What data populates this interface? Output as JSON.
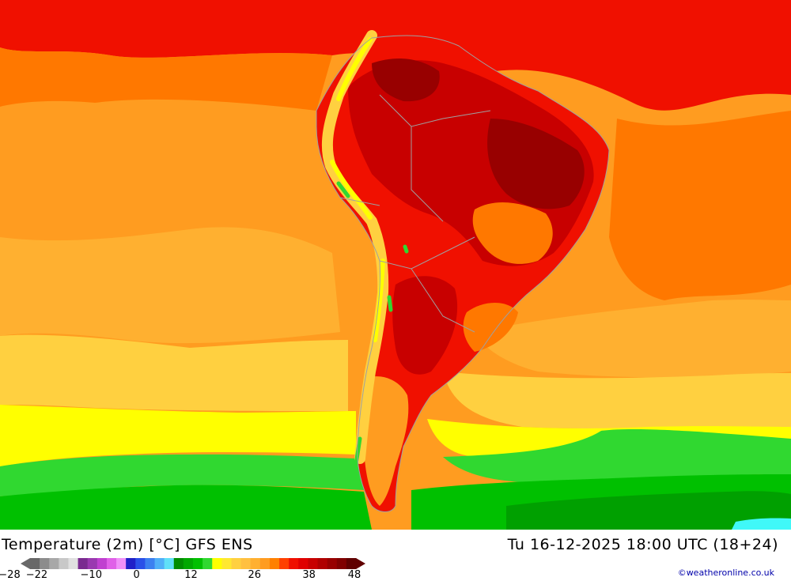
{
  "header": {
    "title": "Temperature (2m) [°C] GFS ENS",
    "valid_time": "Tu 16-12-2025 18:00 UTC (18+24)"
  },
  "legend": {
    "unit": "°C",
    "tick_labels": [
      "-28",
      "-22",
      "-10",
      "0",
      "12",
      "26",
      "38",
      "48"
    ],
    "colors": [
      "#686868",
      "#8c8c8c",
      "#a8a8a8",
      "#c8c8c8",
      "#e0e0e0",
      "#7a2a90",
      "#9a38b0",
      "#c040d0",
      "#e060e8",
      "#f090f8",
      "#2020c8",
      "#2a50e8",
      "#3c80f0",
      "#50b0f8",
      "#60e0f8",
      "#008c00",
      "#00a800",
      "#00c000",
      "#30d830",
      "#ffff00",
      "#ffe830",
      "#ffd040",
      "#ffc040",
      "#ffb030",
      "#ff9c20",
      "#ff8000",
      "#ff4000",
      "#f01000",
      "#e00000",
      "#c80000",
      "#b00000",
      "#980000",
      "#800000",
      "#600000"
    ]
  },
  "map": {
    "region": "South America",
    "colors": {
      "cold_green_dark": "#00a000",
      "green": "#00c000",
      "light_green": "#30d830",
      "yellow": "#ffff00",
      "yellow_orange": "#ffd040",
      "orange_light": "#ffb030",
      "orange": "#ff9c20",
      "orange_dark": "#ff7800",
      "red_orange": "#ff4000",
      "red": "#f01000",
      "deep_red": "#c80000",
      "darkest_red": "#980000",
      "cyan": "#40f8f8",
      "border": "#a0a0a0"
    }
  },
  "credit": "©weatheronline.co.uk"
}
